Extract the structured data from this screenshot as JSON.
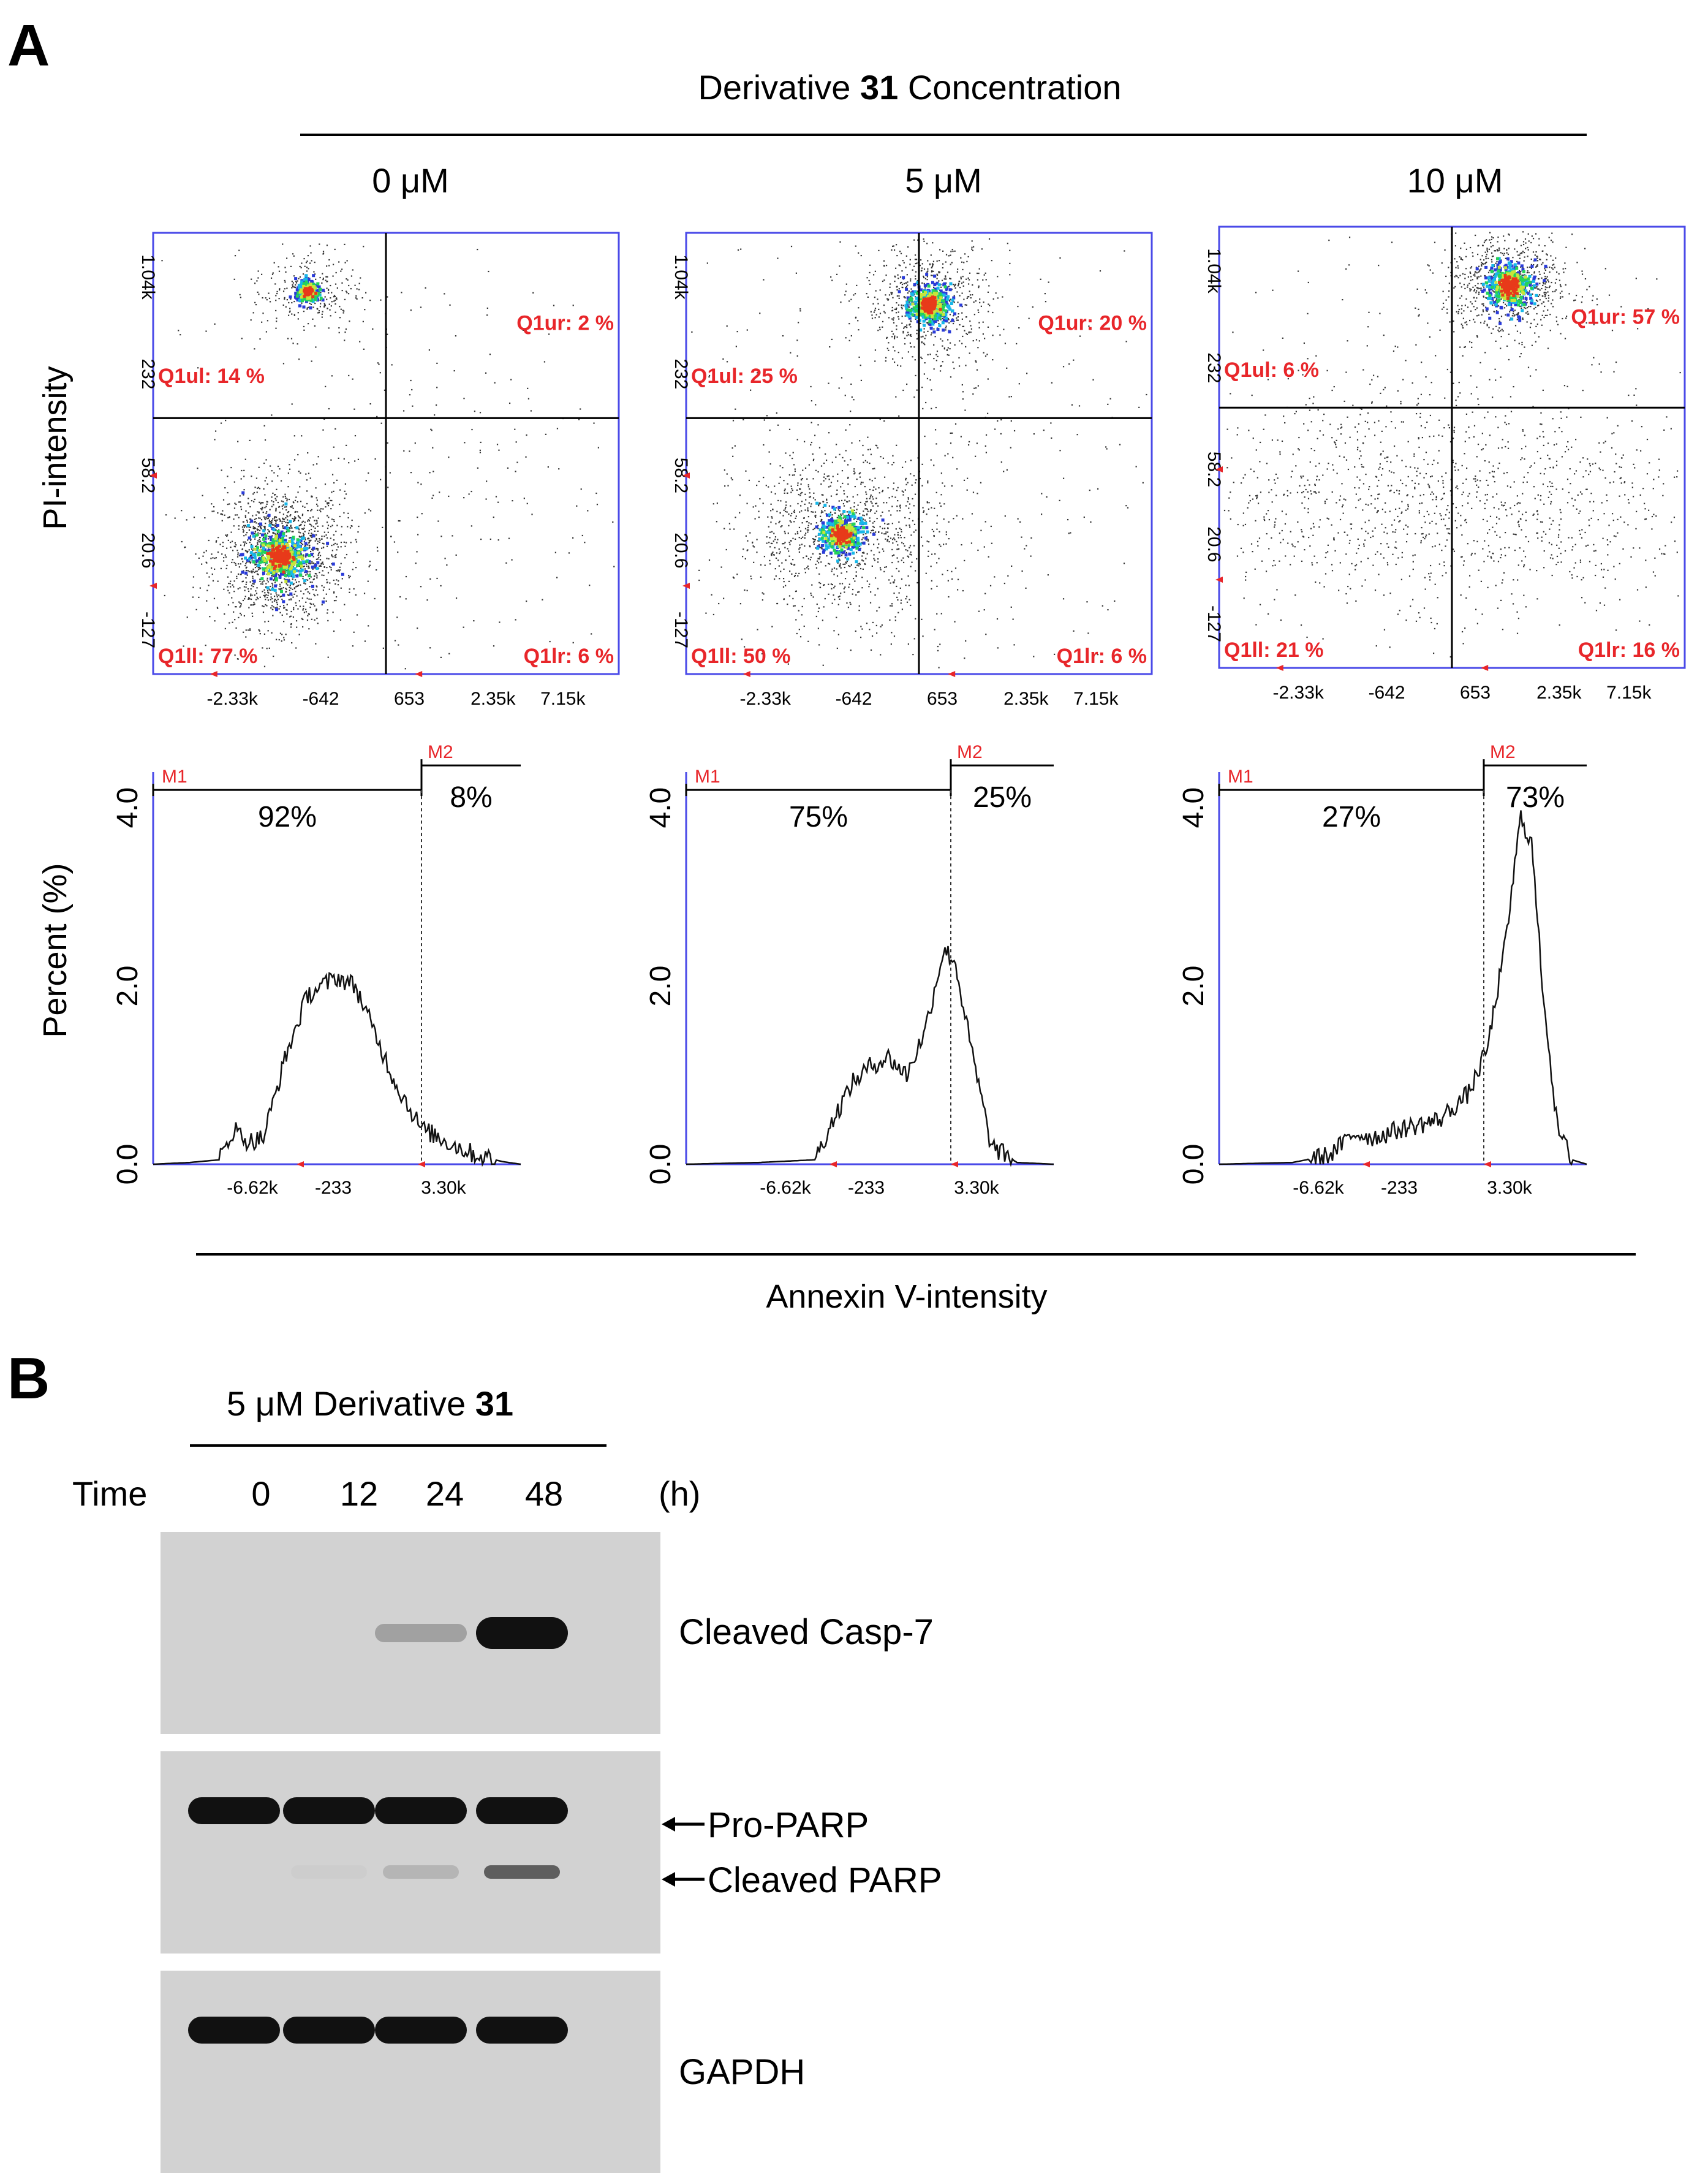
{
  "panel_a": {
    "letter": "A",
    "title_prefix": "Derivative",
    "title_bold": "31",
    "title_suffix": "Concentration",
    "concentrations": [
      "0 μM",
      "5 μM",
      "10 μM"
    ],
    "y_label_scatter": "PI-intensity",
    "y_label_hist": "Percent (%)",
    "x_label": "Annexin V-intensity"
  },
  "chart_data": [
    {
      "type": "scatter",
      "title": "0 μM",
      "xlabel": "Annexin V-intensity",
      "ylabel": "PI-intensity",
      "x_ticks": [
        "-2.33k",
        "-642",
        "653",
        "2.35k",
        "7.15k"
      ],
      "y_ticks": [
        "1.04k",
        "232",
        "58.2",
        "20.6",
        "-127"
      ],
      "quadrants": {
        "ul": "Q1ul: 14 %",
        "ur": "Q1ur: 2 %",
        "ll": "Q1ll: 77 %",
        "lr": "Q1lr: 6 %"
      }
    },
    {
      "type": "scatter",
      "title": "5 μM",
      "xlabel": "Annexin V-intensity",
      "ylabel": "PI-intensity",
      "x_ticks": [
        "-2.33k",
        "-642",
        "653",
        "2.35k",
        "7.15k"
      ],
      "y_ticks": [
        "1.04k",
        "232",
        "58.2",
        "20.6",
        "-127"
      ],
      "quadrants": {
        "ul": "Q1ul: 25 %",
        "ur": "Q1ur: 20 %",
        "ll": "Q1ll: 50 %",
        "lr": "Q1lr: 6 %"
      }
    },
    {
      "type": "scatter",
      "title": "10 μM",
      "xlabel": "Annexin V-intensity",
      "ylabel": "PI-intensity",
      "x_ticks": [
        "-2.33k",
        "-642",
        "653",
        "2.35k",
        "7.15k"
      ],
      "y_ticks": [
        "1.04k",
        "232",
        "58.2",
        "20.6",
        "-127"
      ],
      "quadrants": {
        "ul": "Q1ul: 6 %",
        "ur": "Q1ur: 57 %",
        "ll": "Q1ll: 21 %",
        "lr": "Q1lr: 16 %"
      }
    },
    {
      "type": "area",
      "title": "0 μM histogram",
      "xlabel": "Annexin V-intensity",
      "ylabel": "Percent (%)",
      "x_ticks": [
        "-6.62k",
        "-233",
        "3.30k"
      ],
      "y_ticks": [
        "0.0",
        "2.0",
        "4.0"
      ],
      "ylim": [
        0,
        4.4
      ],
      "gates": {
        "m1": "M1",
        "m2": "M2",
        "m1_pct": "92%",
        "m2_pct": "8%",
        "boundary_x": 0.73
      },
      "curve_x": [
        0,
        0.1,
        0.18,
        0.22,
        0.26,
        0.3,
        0.36,
        0.42,
        0.5,
        0.55,
        0.6,
        0.66,
        0.73,
        0.8,
        0.88,
        0.95,
        1.0
      ],
      "curve_y": [
        0.0,
        0.02,
        0.05,
        0.4,
        0.25,
        0.3,
        1.2,
        1.9,
        2.1,
        2.0,
        1.5,
        0.9,
        0.4,
        0.25,
        0.1,
        0.03,
        0.0
      ]
    },
    {
      "type": "area",
      "title": "5 μM histogram",
      "xlabel": "Annexin V-intensity",
      "ylabel": "Percent (%)",
      "x_ticks": [
        "-6.62k",
        "-233",
        "3.30k"
      ],
      "y_ticks": [
        "0.0",
        "2.0",
        "4.0"
      ],
      "ylim": [
        0,
        4.4
      ],
      "gates": {
        "m1": "M1",
        "m2": "M2",
        "m1_pct": "75%",
        "m2_pct": "25%",
        "boundary_x": 0.72
      },
      "curve_x": [
        0,
        0.2,
        0.35,
        0.4,
        0.45,
        0.5,
        0.55,
        0.6,
        0.65,
        0.7,
        0.73,
        0.78,
        0.83,
        0.9,
        1.0
      ],
      "curve_y": [
        0.0,
        0.02,
        0.05,
        0.5,
        0.9,
        1.1,
        1.2,
        1.0,
        1.5,
        2.4,
        2.3,
        1.2,
        0.2,
        0.02,
        0.0
      ]
    },
    {
      "type": "area",
      "title": "10 μM histogram",
      "xlabel": "Annexin V-intensity",
      "ylabel": "Percent (%)",
      "x_ticks": [
        "-6.62k",
        "-233",
        "3.30k"
      ],
      "y_ticks": [
        "0.0",
        "2.0",
        "4.0"
      ],
      "ylim": [
        0,
        4.4
      ],
      "gates": {
        "m1": "M1",
        "m2": "M2",
        "m1_pct": "27%",
        "m2_pct": "73%",
        "boundary_x": 0.72
      },
      "curve_x": [
        0,
        0.2,
        0.3,
        0.37,
        0.42,
        0.5,
        0.6,
        0.68,
        0.73,
        0.78,
        0.82,
        0.85,
        0.88,
        0.92,
        0.96,
        1.0
      ],
      "curve_y": [
        0.0,
        0.02,
        0.1,
        0.35,
        0.3,
        0.4,
        0.5,
        0.8,
        1.3,
        2.5,
        3.9,
        3.6,
        2.0,
        0.4,
        0.05,
        0.0
      ]
    }
  ],
  "panel_b": {
    "letter": "B",
    "treatment_prefix": "5 μM Derivative",
    "treatment_bold": "31",
    "time_label": "Time",
    "time_points": [
      "0",
      "12",
      "24",
      "48"
    ],
    "time_unit": "(h)",
    "blots": [
      {
        "labels": [
          "Cleaved  Casp-7"
        ],
        "bands": [
          [
            0,
            0.0
          ],
          [
            0,
            0.0
          ],
          [
            0,
            0.25
          ],
          [
            0,
            1.0
          ]
        ]
      },
      {
        "labels": [
          "Pro-PARP",
          "Cleaved  PARP"
        ],
        "bands": [
          [
            1.0,
            0.0
          ],
          [
            1.0,
            0.02
          ],
          [
            1.0,
            0.15
          ],
          [
            1.0,
            0.6
          ]
        ]
      },
      {
        "labels": [
          "GAPDH"
        ],
        "bands": [
          [
            1.0
          ],
          [
            1.0
          ],
          [
            1.0
          ],
          [
            1.0
          ]
        ]
      }
    ]
  }
}
